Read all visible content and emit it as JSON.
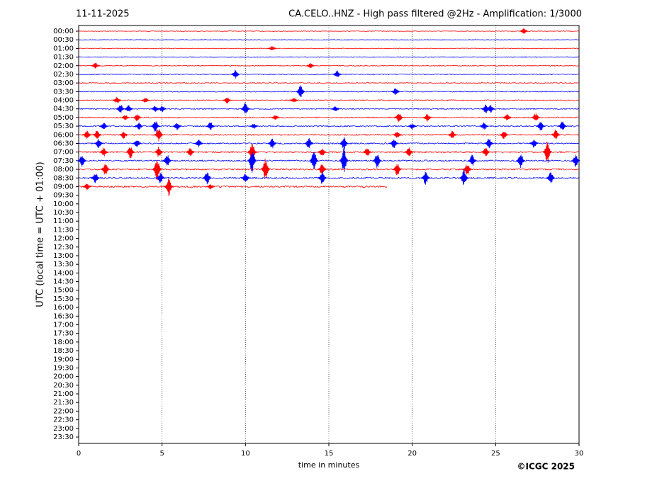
{
  "chart_data": {
    "type": "helicorder",
    "date": "11-11-2025",
    "title": "CA.CELO..HNZ - High pass filtered @2Hz - Amplification: 1/3000",
    "xlabel": "time in minutes",
    "ylabel": "UTC (local time = UTC + 01:00)",
    "credit": "©ICGC 2025",
    "xlim": [
      0,
      30
    ],
    "xticks": [
      0,
      5,
      10,
      15,
      20,
      25,
      30
    ],
    "grid": true,
    "colors": [
      "#ff0000",
      "#0000ff"
    ],
    "categories": [
      "00:00",
      "00:30",
      "01:00",
      "01:30",
      "02:00",
      "02:30",
      "03:00",
      "03:30",
      "04:00",
      "04:30",
      "05:00",
      "05:30",
      "06:00",
      "06:30",
      "07:00",
      "07:30",
      "08:00",
      "08:30",
      "09:00",
      "09:30",
      "10:00",
      "10:30",
      "11:00",
      "11:30",
      "12:00",
      "12:30",
      "13:00",
      "13:30",
      "14:00",
      "14:30",
      "15:00",
      "15:30",
      "16:00",
      "16:30",
      "17:00",
      "17:30",
      "18:00",
      "18:30",
      "19:00",
      "19:30",
      "20:00",
      "20:30",
      "21:00",
      "21:30",
      "22:00",
      "22:30",
      "23:00",
      "23:30"
    ],
    "traces": [
      {
        "end": 30,
        "x": [
          26.7
        ],
        "values": [
          0.25
        ]
      },
      {
        "end": 30,
        "x": [],
        "values": []
      },
      {
        "end": 30,
        "x": [
          11.6
        ],
        "values": [
          0.2
        ]
      },
      {
        "end": 30,
        "x": [],
        "values": []
      },
      {
        "end": 30,
        "x": [
          1.0,
          13.9
        ],
        "values": [
          0.25,
          0.2
        ]
      },
      {
        "end": 30,
        "x": [
          9.4,
          15.5
        ],
        "values": [
          0.35,
          0.3
        ]
      },
      {
        "end": 30,
        "x": [],
        "values": []
      },
      {
        "end": 30,
        "x": [
          13.3,
          19.0
        ],
        "values": [
          0.5,
          0.3
        ]
      },
      {
        "end": 30,
        "x": [
          2.3,
          4.0,
          8.9,
          12.9
        ],
        "values": [
          0.25,
          0.2,
          0.25,
          0.2
        ]
      },
      {
        "end": 30,
        "x": [
          2.5,
          3.0,
          4.6,
          5.0,
          10.0,
          15.4,
          24.4,
          24.7
        ],
        "values": [
          0.35,
          0.3,
          0.25,
          0.25,
          0.5,
          0.2,
          0.35,
          0.3
        ]
      },
      {
        "end": 30,
        "x": [
          2.8,
          3.5,
          11.8,
          19.2,
          20.9,
          25.7,
          27.4
        ],
        "values": [
          0.2,
          0.3,
          0.2,
          0.4,
          0.3,
          0.3,
          0.35
        ]
      },
      {
        "end": 30,
        "x": [
          1.5,
          3.6,
          4.6,
          5.9,
          7.9,
          10.5,
          20,
          24.3,
          27.7,
          29.0
        ],
        "values": [
          0.3,
          0.3,
          0.5,
          0.3,
          0.35,
          0.2,
          0.25,
          0.3,
          0.4,
          0.35
        ]
      },
      {
        "end": 30,
        "x": [
          0.5,
          1.1,
          2.7,
          4.8,
          19.1,
          22.4,
          25.5,
          28.6
        ],
        "values": [
          0.35,
          0.35,
          0.3,
          0.5,
          0.3,
          0.3,
          0.35,
          0.4
        ]
      },
      {
        "end": 30,
        "x": [
          1.2,
          3.5,
          7.2,
          11.6,
          13.8,
          15.9,
          18.9,
          24.6,
          27.3
        ],
        "values": [
          0.35,
          0.35,
          0.3,
          0.4,
          0.4,
          0.5,
          0.4,
          0.4,
          0.35
        ]
      },
      {
        "end": 30,
        "x": [
          1.5,
          3.1,
          4.8,
          6.7,
          10.4,
          14.6,
          17.3,
          19.8,
          24.4,
          28.1
        ],
        "values": [
          0.35,
          0.5,
          0.4,
          0.35,
          0.8,
          0.35,
          0.35,
          0.35,
          0.35,
          0.9
        ]
      },
      {
        "end": 30,
        "x": [
          0.2,
          5.3,
          10.4,
          14.1,
          15.9,
          17.9,
          23.6,
          26.5,
          29.8
        ],
        "values": [
          0.45,
          0.5,
          0.9,
          0.8,
          1.0,
          0.6,
          0.45,
          0.6,
          0.45
        ]
      },
      {
        "end": 30,
        "x": [
          1.6,
          4.7,
          11.2,
          14.6,
          19.1,
          23.3
        ],
        "values": [
          0.5,
          0.9,
          0.9,
          0.45,
          0.5,
          0.45
        ]
      },
      {
        "end": 30,
        "x": [
          1.0,
          4.9,
          7.7,
          10.0,
          14.6,
          20.8,
          23.1,
          28.3
        ],
        "values": [
          0.4,
          0.4,
          0.5,
          0.4,
          0.5,
          0.5,
          0.6,
          0.5
        ]
      },
      {
        "end": 18.5,
        "x": [
          0.5,
          5.4,
          7.9
        ],
        "values": [
          0.25,
          0.7,
          0.2
        ]
      }
    ]
  }
}
